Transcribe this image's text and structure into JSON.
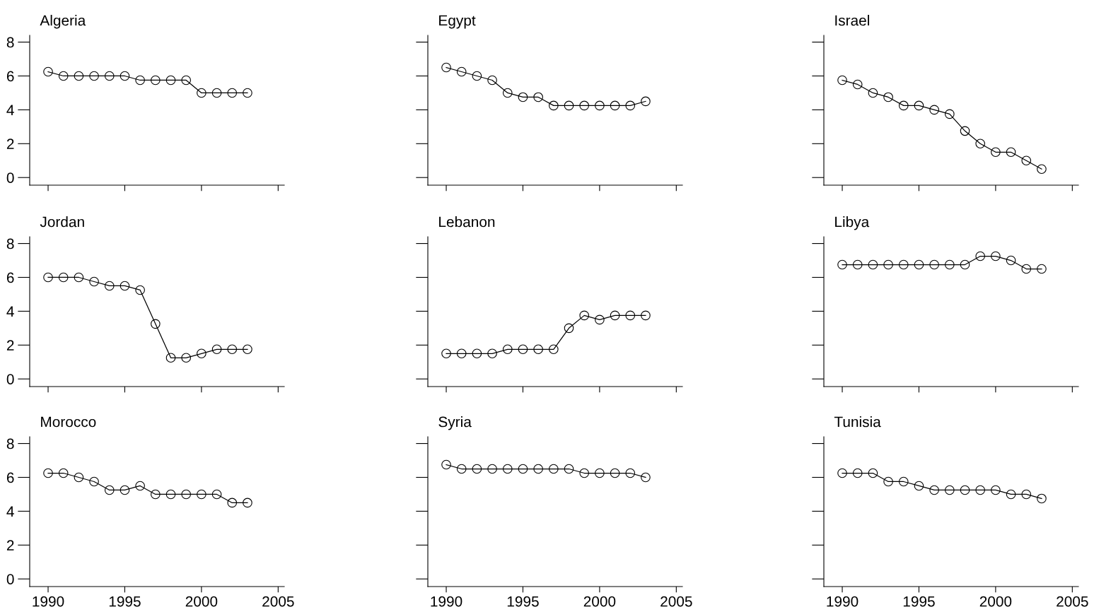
{
  "chart_data": [
    {
      "type": "line",
      "title": "Algeria",
      "x": [
        1990,
        1991,
        1992,
        1993,
        1994,
        1995,
        1996,
        1997,
        1998,
        1999,
        2000,
        2001,
        2002,
        2003
      ],
      "series": [
        {
          "color": "#000000",
          "values": [
            6.25,
            6,
            6,
            6,
            6,
            6,
            5.75,
            5.75,
            5.75,
            5.75,
            5,
            5,
            5,
            5
          ]
        }
      ],
      "marker": "circle",
      "xlim": [
        1988.8,
        2005.4
      ],
      "ylim": [
        -0.45,
        8.4
      ],
      "xticks": [
        1990,
        1995,
        2000,
        2005
      ],
      "yticks": [
        0,
        2,
        4,
        6,
        8
      ],
      "tick_labels": "y"
    },
    {
      "type": "line",
      "title": "Egypt",
      "x": [
        1990,
        1991,
        1992,
        1993,
        1994,
        1995,
        1996,
        1997,
        1998,
        1999,
        2000,
        2001,
        2002,
        2003
      ],
      "series": [
        {
          "color": "#000000",
          "values": [
            6.5,
            6.25,
            6,
            5.75,
            5,
            4.75,
            4.75,
            4.25,
            4.25,
            4.25,
            4.25,
            4.25,
            4.25,
            4.5
          ]
        }
      ],
      "marker": "circle",
      "xlim": [
        1988.8,
        2005.4
      ],
      "ylim": [
        -0.45,
        8.4
      ],
      "xticks": [
        1990,
        1995,
        2000,
        2005
      ],
      "yticks": [
        0,
        2,
        4,
        6,
        8
      ],
      "tick_labels": false
    },
    {
      "type": "line",
      "title": "Israel",
      "x": [
        1990,
        1991,
        1992,
        1993,
        1994,
        1995,
        1996,
        1997,
        1998,
        1999,
        2000,
        2001,
        2002,
        2003
      ],
      "series": [
        {
          "color": "#000000",
          "values": [
            5.75,
            5.5,
            5,
            4.75,
            4.25,
            4.25,
            4,
            3.75,
            2.75,
            2,
            1.5,
            1.5,
            1,
            0.5
          ]
        }
      ],
      "marker": "circle",
      "xlim": [
        1988.8,
        2005.4
      ],
      "ylim": [
        -0.45,
        8.4
      ],
      "xticks": [
        1990,
        1995,
        2000,
        2005
      ],
      "yticks": [
        0,
        2,
        4,
        6,
        8
      ],
      "tick_labels": false
    },
    {
      "type": "line",
      "title": "Jordan",
      "x": [
        1990,
        1991,
        1992,
        1993,
        1994,
        1995,
        1996,
        1997,
        1998,
        1999,
        2000,
        2001,
        2002,
        2003
      ],
      "series": [
        {
          "color": "#000000",
          "values": [
            6,
            6,
            6,
            5.75,
            5.5,
            5.5,
            5.25,
            3.25,
            1.25,
            1.25,
            1.5,
            1.75,
            1.75,
            1.75
          ]
        }
      ],
      "marker": "circle",
      "xlim": [
        1988.8,
        2005.4
      ],
      "ylim": [
        -0.45,
        8.4
      ],
      "xticks": [
        1990,
        1995,
        2000,
        2005
      ],
      "yticks": [
        0,
        2,
        4,
        6,
        8
      ],
      "tick_labels": "y"
    },
    {
      "type": "line",
      "title": "Lebanon",
      "x": [
        1990,
        1991,
        1992,
        1993,
        1994,
        1995,
        1996,
        1997,
        1998,
        1999,
        2000,
        2001,
        2002,
        2003
      ],
      "series": [
        {
          "color": "#000000",
          "values": [
            1.5,
            1.5,
            1.5,
            1.5,
            1.75,
            1.75,
            1.75,
            1.75,
            3,
            3.75,
            3.5,
            3.75,
            3.75,
            3.75
          ]
        }
      ],
      "marker": "circle",
      "xlim": [
        1988.8,
        2005.4
      ],
      "ylim": [
        -0.45,
        8.4
      ],
      "xticks": [
        1990,
        1995,
        2000,
        2005
      ],
      "yticks": [
        0,
        2,
        4,
        6,
        8
      ],
      "tick_labels": false
    },
    {
      "type": "line",
      "title": "Libya",
      "x": [
        1990,
        1991,
        1992,
        1993,
        1994,
        1995,
        1996,
        1997,
        1998,
        1999,
        2000,
        2001,
        2002,
        2003
      ],
      "series": [
        {
          "color": "#000000",
          "values": [
            6.75,
            6.75,
            6.75,
            6.75,
            6.75,
            6.75,
            6.75,
            6.75,
            6.75,
            7.25,
            7.25,
            7,
            6.5,
            6.5
          ]
        }
      ],
      "marker": "circle",
      "xlim": [
        1988.8,
        2005.4
      ],
      "ylim": [
        -0.45,
        8.4
      ],
      "xticks": [
        1990,
        1995,
        2000,
        2005
      ],
      "yticks": [
        0,
        2,
        4,
        6,
        8
      ],
      "tick_labels": false
    },
    {
      "type": "line",
      "title": "Morocco",
      "x": [
        1990,
        1991,
        1992,
        1993,
        1994,
        1995,
        1996,
        1997,
        1998,
        1999,
        2000,
        2001,
        2002,
        2003
      ],
      "series": [
        {
          "color": "#000000",
          "values": [
            6.25,
            6.25,
            6,
            5.75,
            5.25,
            5.25,
            5.5,
            5,
            5,
            5,
            5,
            5,
            4.5,
            4.5
          ]
        }
      ],
      "marker": "circle",
      "xlim": [
        1988.8,
        2005.4
      ],
      "ylim": [
        -0.45,
        8.4
      ],
      "xticks": [
        1990,
        1995,
        2000,
        2005
      ],
      "yticks": [
        0,
        2,
        4,
        6,
        8
      ]
    },
    {
      "type": "line",
      "title": "Syria",
      "x": [
        1990,
        1991,
        1992,
        1993,
        1994,
        1995,
        1996,
        1997,
        1998,
        1999,
        2000,
        2001,
        2002,
        2003
      ],
      "series": [
        {
          "color": "#000000",
          "values": [
            6.75,
            6.5,
            6.5,
            6.5,
            6.5,
            6.5,
            6.5,
            6.5,
            6.5,
            6.25,
            6.25,
            6.25,
            6.25,
            6
          ]
        }
      ],
      "marker": "circle",
      "xlim": [
        1988.8,
        2005.4
      ],
      "ylim": [
        -0.45,
        8.4
      ],
      "xticks": [
        1990,
        1995,
        2000,
        2005
      ],
      "yticks": [
        0,
        2,
        4,
        6,
        8
      ],
      "tick_labels": "x"
    },
    {
      "type": "line",
      "title": "Tunisia",
      "x": [
        1990,
        1991,
        1992,
        1993,
        1994,
        1995,
        1996,
        1997,
        1998,
        1999,
        2000,
        2001,
        2002,
        2003
      ],
      "series": [
        {
          "color": "#000000",
          "values": [
            6.25,
            6.25,
            6.25,
            5.75,
            5.75,
            5.5,
            5.25,
            5.25,
            5.25,
            5.25,
            5.25,
            5,
            5,
            4.75
          ]
        }
      ],
      "marker": "circle",
      "xlim": [
        1988.8,
        2005.4
      ],
      "ylim": [
        -0.45,
        8.4
      ],
      "xticks": [
        1990,
        1995,
        2000,
        2005
      ],
      "yticks": [
        0,
        2,
        4,
        6,
        8
      ],
      "tick_labels": "x"
    }
  ]
}
